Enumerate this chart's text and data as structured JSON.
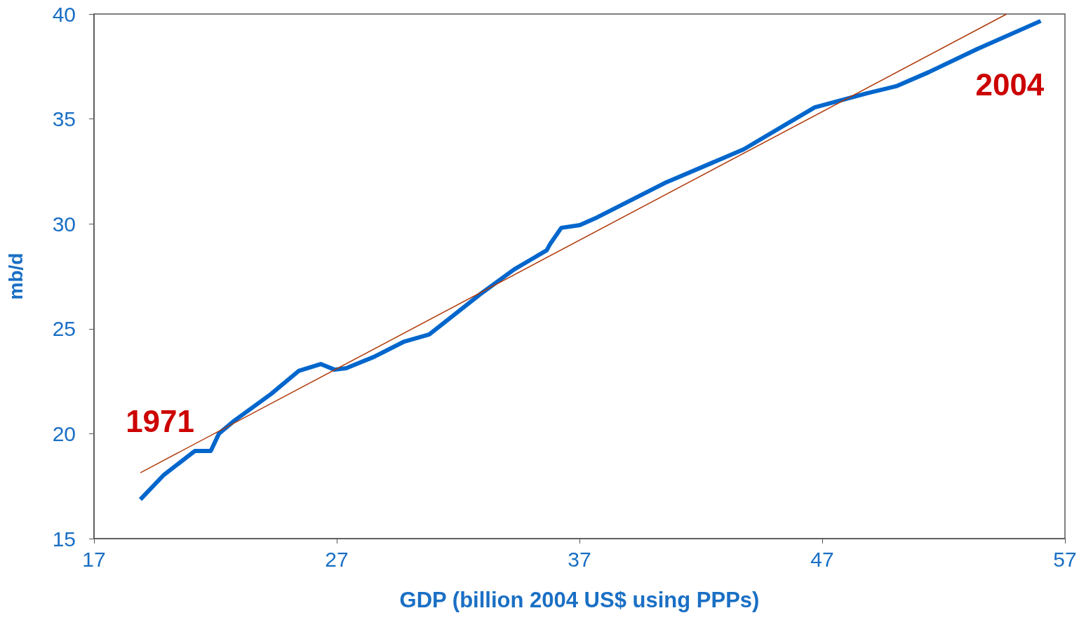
{
  "chart_data": {
    "type": "line",
    "xlabel": "GDP (billion 2004 US$ using PPPs)",
    "ylabel": "mb/d",
    "xlim": [
      17,
      57
    ],
    "xticks": [
      17,
      27,
      37,
      47,
      57
    ],
    "ylim": [
      15,
      40
    ],
    "yticks": [
      15,
      20,
      25,
      30,
      35,
      40
    ],
    "grid": false,
    "marker": "none",
    "series": [
      {
        "color": "#0066cc",
        "x": [
          18.91,
          19.88,
          21.16,
          21.81,
          22.15,
          22.78,
          24.29,
          25.43,
          26.34,
          26.91,
          27.39,
          28.53,
          29.78,
          30.81,
          31.8,
          32.89,
          34.31,
          35.65,
          35.79,
          36.25,
          37.01,
          37.73,
          40.52,
          43.76,
          46.69,
          48.83,
          50.05,
          51.39,
          53.38,
          56.0
        ],
        "values": [
          16.87,
          18.04,
          19.18,
          19.18,
          20.01,
          20.62,
          21.89,
          22.99,
          23.32,
          23.05,
          23.12,
          23.66,
          24.39,
          24.73,
          25.63,
          26.63,
          27.83,
          28.74,
          29.04,
          29.81,
          29.94,
          30.31,
          31.95,
          33.55,
          35.55,
          36.22,
          36.56,
          37.23,
          38.33,
          39.67
        ]
      },
      {
        "type": "line",
        "color": "#b03a0a",
        "x": [
          18.91,
          54.6
        ],
        "values": [
          18.14,
          40
        ]
      }
    ],
    "annotations": [
      "1971",
      "2004"
    ]
  }
}
